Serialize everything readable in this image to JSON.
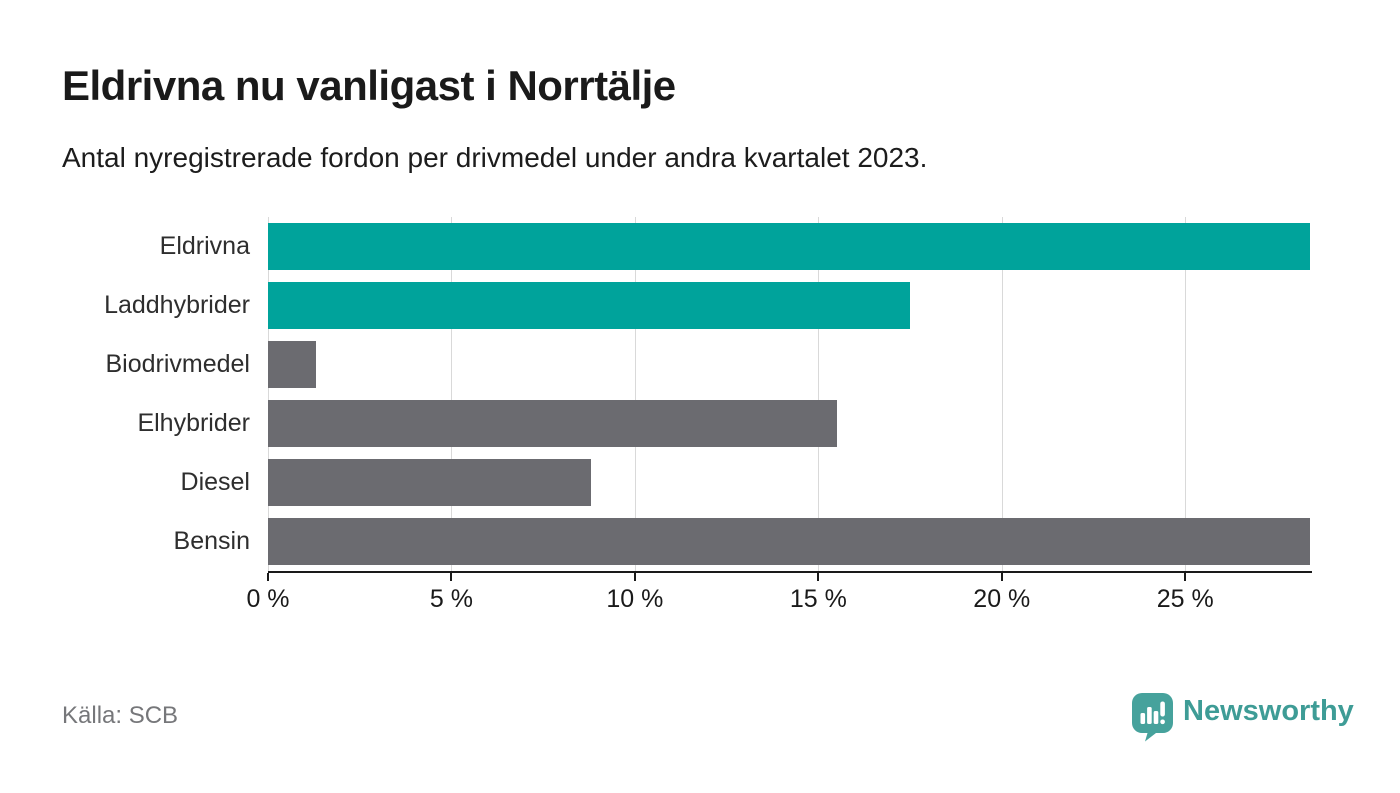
{
  "header": {
    "title": "Eldrivna nu vanligast i Norrtälje",
    "subtitle": "Antal nyregistrerade fordon per drivmedel under andra kvartalet 2023."
  },
  "chart_data": {
    "type": "bar",
    "orientation": "horizontal",
    "title": "Eldrivna nu vanligast i Norrtälje",
    "subtitle": "Antal nyregistrerade fordon per drivmedel under andra kvartalet 2023.",
    "categories": [
      "Eldrivna",
      "Laddhybrider",
      "Biodrivmedel",
      "Elhybrider",
      "Diesel",
      "Bensin"
    ],
    "values": [
      28.4,
      17.5,
      1.3,
      15.5,
      8.8,
      28.4
    ],
    "unit": "%",
    "bar_colors": [
      "#00a39b",
      "#00a39b",
      "#6b6b70",
      "#6b6b70",
      "#6b6b70",
      "#6b6b70"
    ],
    "highlight_color": "#00a39b",
    "default_color": "#6b6b70",
    "x_ticks": [
      0,
      5,
      10,
      15,
      20,
      25
    ],
    "x_tick_labels": [
      "0 %",
      "5 %",
      "10 %",
      "15 %",
      "20 %",
      "25 %"
    ],
    "xlim": [
      0,
      28.4
    ],
    "xlabel": "",
    "ylabel": "",
    "grid": "vertical",
    "legend": "none"
  },
  "footer": {
    "source": "Källa: SCB",
    "brand": "Newsworthy"
  },
  "colors": {
    "background": "#ffffff",
    "title_text": "#1a1a1a",
    "axis": "#1a1a1a",
    "gridline": "#d9d9d9",
    "source_text": "#76777a",
    "logo_teal": "#3e9c96",
    "bar_teal": "#00a39b",
    "bar_gray": "#6b6b70"
  },
  "icons": {
    "logo_icon": "newsworthy-speech-bubble-chart-icon"
  }
}
